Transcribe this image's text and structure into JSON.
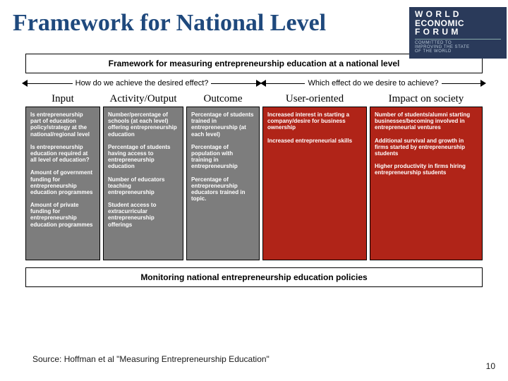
{
  "title": "Framework for National Level",
  "logo": {
    "line1": "W O R L D",
    "line2": "ECONOMIC",
    "line3": "F O R U M",
    "tag1": "COMMITTED TO",
    "tag2": "IMPROVING THE STATE",
    "tag3": "OF THE WORLD"
  },
  "subtitle": "Framework for measuring entrepreneurship education at a national level",
  "question_left": "How do we achieve the desired effect?",
  "question_right": "Which effect do we desire to achieve?",
  "headers": {
    "c1": "Input",
    "c2": "Activity/Output",
    "c3": "Outcome",
    "c4": "User-oriented",
    "c5": "Impact on society"
  },
  "columns": {
    "c1": [
      "Is entrepreneurship part of education policy/strategy at the national/regional level",
      "Is entrepreneurship education required at all level of education?",
      "Amount of government funding for entrepreneurship education programmes",
      "Amount of private funding for entrepreneurship education programmes"
    ],
    "c2": [
      "Number/percentage of schools (at each level) offering entrepreneurship education",
      "Percentage of students having access to entrepreneurship education",
      "Number of educators teaching entrepreneurship",
      "Student access to extracurricular entrepreneurship offerings"
    ],
    "c3": [
      "Percentage of students trained in entrepreneurship (at each level)",
      "Percentage of population with training in entrepreneurship",
      "Percentage of entrepreneurship educators trained in topic."
    ],
    "c4": [
      "Increased interest in starting a company/desire for business ownership",
      "Increased entrepreneurial skills"
    ],
    "c5": [
      "Number of students/alumni starting businesses/becoming involved in entrepreneurial ventures",
      "Additional survival and growth in firms started by entrepreneurship students",
      "Higher productivity in firms hiring entrepreneurship students"
    ]
  },
  "monitor": "Monitoring national entrepreneurship education policies",
  "source": "Source: Hoffman et al \"Measuring Entrepreneurship Education\"",
  "page": "10",
  "colors": {
    "title": "#1f497d",
    "grey": "#7d7d7d",
    "red": "#b02418"
  }
}
